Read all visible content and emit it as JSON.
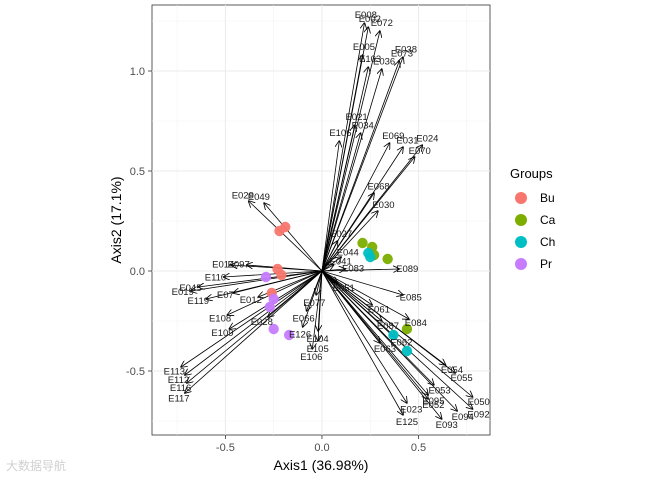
{
  "chart_data": {
    "type": "scatter",
    "subtype": "biplot",
    "xlabel": "Axis1 (36.98%)",
    "ylabel": "Axis2 (17.1%)",
    "xlim": [
      -0.88,
      0.87
    ],
    "ylim": [
      -0.82,
      1.33
    ],
    "xticks": [
      -0.5,
      0.0,
      0.5
    ],
    "xtick_labels": [
      "-0.5",
      "0.0",
      "0.5"
    ],
    "yticks": [
      -0.5,
      0.0,
      0.5,
      1.0
    ],
    "ytick_labels": [
      "-0.5",
      "0.0",
      "0.5",
      "1.0"
    ],
    "grid": true,
    "legend": {
      "title": "Groups",
      "position": "right",
      "entries": [
        {
          "name": "Bu",
          "color": "#F8766D"
        },
        {
          "name": "Ca",
          "color": "#7CAE00"
        },
        {
          "name": "Ch",
          "color": "#00BFC4"
        },
        {
          "name": "Pr",
          "color": "#C77CFF"
        }
      ]
    },
    "points": [
      {
        "group": "Bu",
        "x": -0.19,
        "y": 0.22
      },
      {
        "group": "Bu",
        "x": -0.22,
        "y": 0.2
      },
      {
        "group": "Bu",
        "x": -0.23,
        "y": 0.01
      },
      {
        "group": "Bu",
        "x": -0.26,
        "y": -0.11
      },
      {
        "group": "Bu",
        "x": -0.21,
        "y": -0.02
      },
      {
        "group": "Ca",
        "x": 0.21,
        "y": 0.14
      },
      {
        "group": "Ca",
        "x": 0.26,
        "y": 0.12
      },
      {
        "group": "Ca",
        "x": 0.34,
        "y": 0.06
      },
      {
        "group": "Ca",
        "x": 0.44,
        "y": -0.29
      },
      {
        "group": "Ca",
        "x": 0.27,
        "y": 0.08
      },
      {
        "group": "Ch",
        "x": 0.24,
        "y": 0.09
      },
      {
        "group": "Ch",
        "x": 0.37,
        "y": -0.32
      },
      {
        "group": "Ch",
        "x": 0.44,
        "y": -0.4
      },
      {
        "group": "Ch",
        "x": 0.25,
        "y": 0.07
      },
      {
        "group": "Pr",
        "x": -0.29,
        "y": -0.03
      },
      {
        "group": "Pr",
        "x": -0.25,
        "y": -0.14
      },
      {
        "group": "Pr",
        "x": -0.25,
        "y": -0.29
      },
      {
        "group": "Pr",
        "x": -0.17,
        "y": -0.32
      },
      {
        "group": "Pr",
        "x": -0.27,
        "y": -0.18
      }
    ],
    "vectors": [
      {
        "label": "E008",
        "x": 0.22,
        "y": 1.24
      },
      {
        "label": "E002",
        "x": 0.24,
        "y": 1.22
      },
      {
        "label": "E072",
        "x": 0.3,
        "y": 1.2
      },
      {
        "label": "E005",
        "x": 0.21,
        "y": 1.08
      },
      {
        "label": "E038",
        "x": 0.42,
        "y": 1.07
      },
      {
        "label": "E073",
        "x": 0.4,
        "y": 1.05
      },
      {
        "label": "E103",
        "x": 0.24,
        "y": 1.02
      },
      {
        "label": "E036",
        "x": 0.31,
        "y": 1.01
      },
      {
        "label": "E021",
        "x": 0.17,
        "y": 0.73
      },
      {
        "label": "E034",
        "x": 0.2,
        "y": 0.69
      },
      {
        "label": "E106",
        "x": 0.09,
        "y": 0.65
      },
      {
        "label": "E069",
        "x": 0.35,
        "y": 0.64
      },
      {
        "label": "E024",
        "x": 0.52,
        "y": 0.63
      },
      {
        "label": "E031",
        "x": 0.42,
        "y": 0.62
      },
      {
        "label": "E070",
        "x": 0.48,
        "y": 0.57
      },
      {
        "label": "E068",
        "x": 0.27,
        "y": 0.39
      },
      {
        "label": "E030",
        "x": 0.29,
        "y": 0.3
      },
      {
        "label": "E029",
        "x": -0.38,
        "y": 0.35
      },
      {
        "label": "E049",
        "x": -0.3,
        "y": 0.34
      },
      {
        "label": "E014",
        "x": -0.47,
        "y": 0.03
      },
      {
        "label": "E097",
        "x": -0.39,
        "y": 0.03
      },
      {
        "label": "E110",
        "x": -0.51,
        "y": -0.03
      },
      {
        "label": "E045",
        "x": -0.64,
        "y": -0.08
      },
      {
        "label": "E119",
        "x": -0.6,
        "y": -0.14
      },
      {
        "label": "E019",
        "x": -0.68,
        "y": -0.1
      },
      {
        "label": "E07",
        "x": -0.46,
        "y": -0.11
      },
      {
        "label": "E012",
        "x": -0.33,
        "y": -0.13
      },
      {
        "label": "E108",
        "x": -0.49,
        "y": -0.22
      },
      {
        "label": "E109",
        "x": -0.48,
        "y": -0.29
      },
      {
        "label": "E028",
        "x": -0.28,
        "y": -0.23
      },
      {
        "label": "E105",
        "x": -0.02,
        "y": -0.35
      },
      {
        "label": "E106",
        "x": -0.05,
        "y": -0.39
      },
      {
        "label": "E104",
        "x": -0.02,
        "y": -0.3
      },
      {
        "label": "E113",
        "x": -0.73,
        "y": -0.48
      },
      {
        "label": "E112",
        "x": -0.71,
        "y": -0.52
      },
      {
        "label": "E116",
        "x": -0.7,
        "y": -0.56
      },
      {
        "label": "E117",
        "x": -0.71,
        "y": -0.61
      },
      {
        "label": "E085",
        "x": 0.42,
        "y": -0.12
      },
      {
        "label": "E089",
        "x": 0.4,
        "y": 0.01
      },
      {
        "label": "E084",
        "x": 0.45,
        "y": -0.24
      },
      {
        "label": "E054",
        "x": 0.64,
        "y": -0.47
      },
      {
        "label": "E055",
        "x": 0.69,
        "y": -0.51
      },
      {
        "label": "E053",
        "x": 0.58,
        "y": -0.57
      },
      {
        "label": "E050",
        "x": 0.78,
        "y": -0.63
      },
      {
        "label": "E095",
        "x": 0.55,
        "y": -0.62
      },
      {
        "label": "E092",
        "x": 0.78,
        "y": -0.69
      },
      {
        "label": "E094",
        "x": 0.7,
        "y": -0.7
      },
      {
        "label": "E093",
        "x": 0.62,
        "y": -0.74
      },
      {
        "label": "E052",
        "x": 0.55,
        "y": -0.64
      },
      {
        "label": "E023",
        "x": 0.44,
        "y": -0.66
      },
      {
        "label": "E125",
        "x": 0.42,
        "y": -0.72
      },
      {
        "label": "E087",
        "x": 0.31,
        "y": -0.25
      },
      {
        "label": "E061",
        "x": 0.26,
        "y": -0.17
      },
      {
        "label": "E063",
        "x": 0.3,
        "y": -0.36
      },
      {
        "label": "E062",
        "x": 0.38,
        "y": -0.33
      },
      {
        "label": "E077",
        "x": -0.03,
        "y": -0.12
      },
      {
        "label": "E126",
        "x": -0.1,
        "y": -0.28
      },
      {
        "label": "E041",
        "x": 0.06,
        "y": 0.03
      },
      {
        "label": "E044",
        "x": 0.1,
        "y": 0.07
      },
      {
        "label": "E027",
        "x": 0.08,
        "y": 0.15
      },
      {
        "label": "E083",
        "x": 0.12,
        "y": 0.01
      },
      {
        "label": "E051",
        "x": 0.08,
        "y": -0.06
      },
      {
        "label": "E066",
        "x": -0.08,
        "y": -0.2
      }
    ]
  },
  "watermark": "大数据导航"
}
